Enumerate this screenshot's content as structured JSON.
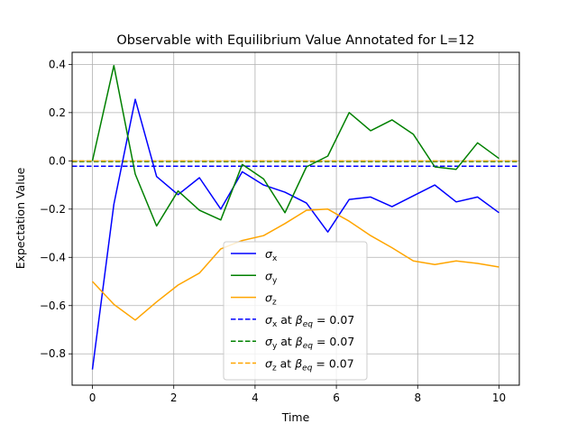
{
  "chart_data": {
    "type": "line",
    "title": "Observable with Equilibrium Value Annotated for L=12",
    "xlabel": "Time",
    "ylabel": "Expectation Value",
    "xlim": [
      -0.5,
      10.5
    ],
    "ylim": [
      -0.93,
      0.45
    ],
    "xticks": [
      0,
      2,
      4,
      6,
      8,
      10
    ],
    "yticks": [
      -0.8,
      -0.6,
      -0.4,
      -0.2,
      0.0,
      0.2,
      0.4
    ],
    "xtick_labels": [
      "0",
      "2",
      "4",
      "6",
      "8",
      "10"
    ],
    "ytick_labels": [
      "−0.8",
      "−0.6",
      "−0.4",
      "−0.2",
      "0.0",
      "0.2",
      "0.4"
    ],
    "grid": true,
    "legend_placement": "lower-center",
    "x": [
      0,
      0.526,
      1.053,
      1.579,
      2.105,
      2.632,
      3.158,
      3.684,
      4.211,
      4.737,
      5.263,
      5.789,
      6.316,
      6.842,
      7.368,
      7.895,
      8.421,
      8.947,
      9.474,
      10.0
    ],
    "series": [
      {
        "name": "σx",
        "color": "#0000ff",
        "style": "solid",
        "values": [
          -0.865,
          -0.18,
          0.255,
          -0.065,
          -0.14,
          -0.07,
          -0.2,
          -0.045,
          -0.1,
          -0.13,
          -0.175,
          -0.295,
          -0.16,
          -0.15,
          -0.19,
          -0.145,
          -0.1,
          -0.17,
          -0.15,
          -0.215
        ]
      },
      {
        "name": "σy",
        "color": "#008000",
        "style": "solid",
        "values": [
          0.0,
          0.395,
          -0.055,
          -0.27,
          -0.125,
          -0.205,
          -0.245,
          -0.015,
          -0.075,
          -0.215,
          -0.025,
          0.02,
          0.2,
          0.125,
          0.17,
          0.11,
          -0.025,
          -0.035,
          0.075,
          0.01
        ]
      },
      {
        "name": "σz",
        "color": "#ffa500",
        "style": "solid",
        "values": [
          -0.5,
          -0.595,
          -0.66,
          -0.585,
          -0.515,
          -0.465,
          -0.365,
          -0.33,
          -0.31,
          -0.26,
          -0.205,
          -0.2,
          -0.25,
          -0.31,
          -0.36,
          -0.415,
          -0.43,
          -0.415,
          -0.425,
          -0.44
        ]
      }
    ],
    "hlines": [
      {
        "name": "σx at βeq = 0.07",
        "color": "#0000ff",
        "style": "dashed",
        "y": -0.022
      },
      {
        "name": "σy at βeq = 0.07",
        "color": "#008000",
        "style": "dashed",
        "y": -0.003
      },
      {
        "name": "σz at βeq = 0.07",
        "color": "#ffa500",
        "style": "dashed",
        "y": 0.0
      }
    ],
    "legend": [
      {
        "symbol": "σ",
        "sub": "x",
        "suffix": "",
        "beta": "",
        "color": "#0000ff",
        "style": "solid"
      },
      {
        "symbol": "σ",
        "sub": "y",
        "suffix": "",
        "beta": "",
        "color": "#008000",
        "style": "solid"
      },
      {
        "symbol": "σ",
        "sub": "z",
        "suffix": "",
        "beta": "",
        "color": "#ffa500",
        "style": "solid"
      },
      {
        "symbol": "σ",
        "sub": "x",
        "suffix": " at ",
        "beta": "= 0.07",
        "color": "#0000ff",
        "style": "dashed"
      },
      {
        "symbol": "σ",
        "sub": "y",
        "suffix": " at ",
        "beta": "= 0.07",
        "color": "#008000",
        "style": "dashed"
      },
      {
        "symbol": "σ",
        "sub": "z",
        "suffix": " at ",
        "beta": "= 0.07",
        "color": "#ffa500",
        "style": "dashed"
      }
    ]
  }
}
